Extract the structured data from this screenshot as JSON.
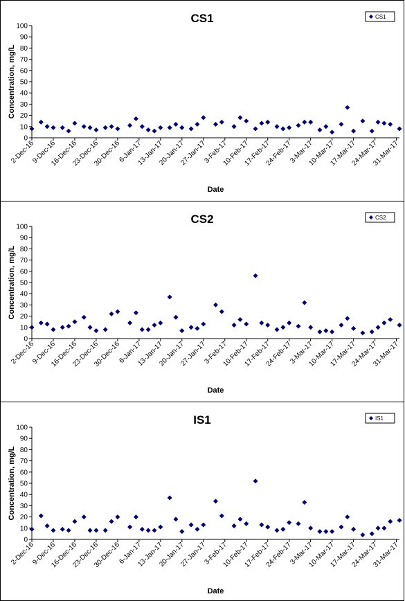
{
  "chart_data": [
    {
      "type": "scatter",
      "title": "CS1",
      "xlabel": "Date",
      "ylabel": "Concentration, mg/L",
      "ylim": [
        0,
        100
      ],
      "yticks": [
        0,
        10,
        20,
        30,
        40,
        50,
        60,
        70,
        80,
        90,
        100
      ],
      "xlim": [
        "2016-12-02",
        "2017-04-01"
      ],
      "xtick_labels": [
        "2-Dec-16",
        "9-Dec-16",
        "16-Dec-16",
        "23-Dec-16",
        "30-Dec-16",
        "6-Jan-17",
        "13-Jan-17",
        "20-Jan-17",
        "27-Jan-17",
        "3-Feb-17",
        "10-Feb-17",
        "17-Feb-17",
        "24-Feb-17",
        "3-Mar-17",
        "10-Mar-17",
        "17-Mar-17",
        "24-Mar-17",
        "31-Mar-17"
      ],
      "grid": false,
      "legend_position": "top-right",
      "series": [
        {
          "name": "CS1",
          "color": "#000080",
          "marker": "diamond",
          "x": [
            "2016-12-02",
            "2016-12-05",
            "2016-12-07",
            "2016-12-09",
            "2016-12-12",
            "2016-12-14",
            "2016-12-16",
            "2016-12-19",
            "2016-12-21",
            "2016-12-23",
            "2016-12-26",
            "2016-12-28",
            "2016-12-30",
            "2017-01-03",
            "2017-01-05",
            "2017-01-07",
            "2017-01-09",
            "2017-01-11",
            "2017-01-13",
            "2017-01-16",
            "2017-01-18",
            "2017-01-20",
            "2017-01-23",
            "2017-01-25",
            "2017-01-27",
            "2017-01-31",
            "2017-02-02",
            "2017-02-06",
            "2017-02-08",
            "2017-02-10",
            "2017-02-13",
            "2017-02-15",
            "2017-02-17",
            "2017-02-20",
            "2017-02-22",
            "2017-02-24",
            "2017-02-27",
            "2017-03-01",
            "2017-03-03",
            "2017-03-06",
            "2017-03-08",
            "2017-03-10",
            "2017-03-13",
            "2017-03-15",
            "2017-03-17",
            "2017-03-20",
            "2017-03-23",
            "2017-03-25",
            "2017-03-27",
            "2017-03-29",
            "2017-04-01"
          ],
          "y": [
            8,
            14,
            10,
            9,
            9,
            6,
            13,
            10,
            9,
            7,
            9,
            10,
            8,
            11,
            17,
            10,
            7,
            6,
            9,
            9,
            12,
            9,
            8,
            12,
            18,
            12,
            14,
            10,
            18,
            15,
            8,
            13,
            14,
            10,
            8,
            9,
            11,
            14,
            14,
            7,
            10,
            5,
            12,
            27,
            6,
            15,
            6,
            14,
            13,
            12,
            8
          ]
        }
      ]
    },
    {
      "type": "scatter",
      "title": "CS2",
      "xlabel": "Date",
      "ylabel": "Concentration, mg/L",
      "ylim": [
        0,
        100
      ],
      "yticks": [
        0,
        10,
        20,
        30,
        40,
        50,
        60,
        70,
        80,
        90,
        100
      ],
      "xlim": [
        "2016-12-02",
        "2017-04-01"
      ],
      "xtick_labels": [
        "2-Dec-16",
        "9-Dec-16",
        "16-Dec-16",
        "23-Dec-16",
        "30-Dec-16",
        "6-Jan-17",
        "13-Jan-17",
        "20-Jan-17",
        "27-Jan-17",
        "3-Feb-17",
        "10-Feb-17",
        "17-Feb-17",
        "24-Feb-17",
        "3-Mar-17",
        "10-Mar-17",
        "17-Mar-17",
        "24-Mar-17",
        "31-Mar-17"
      ],
      "grid": false,
      "legend_position": "top-right",
      "series": [
        {
          "name": "CS2",
          "color": "#000080",
          "marker": "diamond",
          "x": [
            "2016-12-02",
            "2016-12-05",
            "2016-12-07",
            "2016-12-09",
            "2016-12-12",
            "2016-12-14",
            "2016-12-16",
            "2016-12-19",
            "2016-12-21",
            "2016-12-23",
            "2016-12-26",
            "2016-12-28",
            "2016-12-30",
            "2017-01-03",
            "2017-01-05",
            "2017-01-07",
            "2017-01-09",
            "2017-01-11",
            "2017-01-13",
            "2017-01-16",
            "2017-01-18",
            "2017-01-20",
            "2017-01-23",
            "2017-01-25",
            "2017-01-27",
            "2017-01-31",
            "2017-02-02",
            "2017-02-06",
            "2017-02-08",
            "2017-02-10",
            "2017-02-13",
            "2017-02-15",
            "2017-02-17",
            "2017-02-20",
            "2017-02-22",
            "2017-02-24",
            "2017-02-27",
            "2017-03-01",
            "2017-03-03",
            "2017-03-06",
            "2017-03-08",
            "2017-03-10",
            "2017-03-13",
            "2017-03-15",
            "2017-03-17",
            "2017-03-20",
            "2017-03-23",
            "2017-03-25",
            "2017-03-27",
            "2017-03-29",
            "2017-04-01"
          ],
          "y": [
            10,
            14,
            13,
            8,
            10,
            11,
            15,
            19,
            10,
            7,
            8,
            22,
            24,
            14,
            23,
            8,
            8,
            12,
            14,
            37,
            19,
            7,
            10,
            9,
            13,
            30,
            24,
            12,
            17,
            13,
            56,
            14,
            12,
            8,
            10,
            14,
            11,
            32,
            10,
            6,
            7,
            6,
            12,
            18,
            9,
            5,
            6,
            10,
            14,
            17,
            12
          ]
        }
      ]
    },
    {
      "type": "scatter",
      "title": "IS1",
      "xlabel": "Date",
      "ylabel": "Concentration, mg/L",
      "ylim": [
        0,
        100
      ],
      "yticks": [
        0,
        10,
        20,
        30,
        40,
        50,
        60,
        70,
        80,
        90,
        100
      ],
      "xlim": [
        "2016-12-02",
        "2017-04-01"
      ],
      "xtick_labels": [
        "2-Dec-16",
        "9-Dec-16",
        "16-Dec-16",
        "23-Dec-16",
        "30-Dec-16",
        "6-Jan-17",
        "13-Jan-17",
        "20-Jan-17",
        "27-Jan-17",
        "3-Feb-17",
        "10-Feb-17",
        "17-Feb-17",
        "24-Feb-17",
        "3-Mar-17",
        "10-Mar-17",
        "17-Mar-17",
        "24-Mar-17",
        "31-Mar-17"
      ],
      "grid": false,
      "legend_position": "top-right",
      "series": [
        {
          "name": "IS1",
          "color": "#000080",
          "marker": "diamond",
          "x": [
            "2016-12-02",
            "2016-12-05",
            "2016-12-07",
            "2016-12-09",
            "2016-12-12",
            "2016-12-14",
            "2016-12-16",
            "2016-12-19",
            "2016-12-21",
            "2016-12-23",
            "2016-12-26",
            "2016-12-28",
            "2016-12-30",
            "2017-01-03",
            "2017-01-05",
            "2017-01-07",
            "2017-01-09",
            "2017-01-11",
            "2017-01-13",
            "2017-01-16",
            "2017-01-18",
            "2017-01-20",
            "2017-01-23",
            "2017-01-25",
            "2017-01-27",
            "2017-01-31",
            "2017-02-02",
            "2017-02-06",
            "2017-02-08",
            "2017-02-10",
            "2017-02-13",
            "2017-02-15",
            "2017-02-17",
            "2017-02-20",
            "2017-02-22",
            "2017-02-24",
            "2017-02-27",
            "2017-03-01",
            "2017-03-03",
            "2017-03-06",
            "2017-03-08",
            "2017-03-10",
            "2017-03-13",
            "2017-03-15",
            "2017-03-17",
            "2017-03-20",
            "2017-03-23",
            "2017-03-25",
            "2017-03-27",
            "2017-03-29",
            "2017-04-01"
          ],
          "y": [
            9,
            21,
            12,
            8,
            9,
            8,
            16,
            20,
            8,
            8,
            8,
            16,
            20,
            11,
            20,
            9,
            8,
            8,
            11,
            37,
            18,
            7,
            13,
            9,
            13,
            34,
            21,
            12,
            18,
            14,
            52,
            13,
            11,
            8,
            9,
            15,
            14,
            33,
            10,
            7,
            7,
            7,
            11,
            20,
            9,
            4,
            5,
            10,
            10,
            16,
            17
          ]
        }
      ]
    }
  ]
}
